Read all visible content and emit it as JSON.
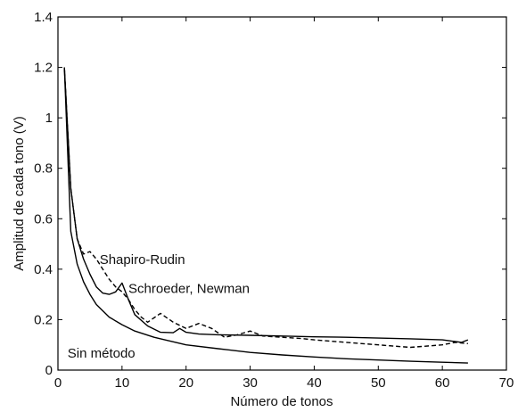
{
  "chart_data": {
    "type": "line",
    "title": "",
    "xlabel": "Número de tonos",
    "ylabel": "Amplitud de cada tono (V)",
    "xlim": [
      0,
      70
    ],
    "ylim": [
      0,
      1.4
    ],
    "xticks": [
      0,
      10,
      20,
      30,
      40,
      50,
      60,
      70
    ],
    "yticks": [
      0,
      0.2,
      0.4,
      0.6,
      0.8,
      1.0,
      1.2,
      1.4
    ],
    "xtick_labels": [
      "0",
      "10",
      "20",
      "30",
      "40",
      "50",
      "60",
      "70"
    ],
    "ytick_labels": [
      "0",
      "0.2",
      "0.4",
      "0.6",
      "0.8",
      "1",
      "1.2",
      "1.4"
    ],
    "grid": false,
    "legend": "none",
    "series": [
      {
        "style": "solid",
        "color": "#000000",
        "x": [
          1,
          2,
          3,
          4,
          5,
          6,
          8,
          10,
          12,
          15,
          20,
          25,
          30,
          35,
          40,
          45,
          50,
          55,
          60,
          64
        ],
        "y": [
          1.2,
          0.55,
          0.42,
          0.35,
          0.3,
          0.26,
          0.21,
          0.18,
          0.155,
          0.13,
          0.1,
          0.085,
          0.07,
          0.06,
          0.052,
          0.045,
          0.04,
          0.035,
          0.031,
          0.028
        ]
      },
      {
        "style": "solid",
        "color": "#000000",
        "x": [
          1,
          2,
          3,
          4,
          5,
          6,
          7,
          8,
          9,
          10,
          11,
          12,
          14,
          16,
          18,
          19,
          20,
          22,
          25,
          30,
          35,
          40,
          45,
          50,
          55,
          60,
          63,
          64
        ],
        "y": [
          1.2,
          0.72,
          0.52,
          0.44,
          0.38,
          0.33,
          0.305,
          0.3,
          0.31,
          0.345,
          0.28,
          0.22,
          0.175,
          0.15,
          0.148,
          0.165,
          0.15,
          0.143,
          0.14,
          0.138,
          0.135,
          0.132,
          0.13,
          0.127,
          0.124,
          0.12,
          0.11,
          0.12
        ]
      },
      {
        "style": "dashed",
        "color": "#000000",
        "x": [
          1,
          2,
          3,
          4,
          5,
          6,
          7,
          8,
          9,
          10,
          11,
          12,
          13,
          14,
          16,
          18,
          20,
          22,
          24,
          26,
          28,
          30,
          32,
          35,
          38,
          40,
          45,
          50,
          55,
          60,
          62,
          64
        ],
        "y": [
          1.2,
          0.72,
          0.52,
          0.46,
          0.47,
          0.44,
          0.4,
          0.36,
          0.33,
          0.31,
          0.28,
          0.24,
          0.21,
          0.19,
          0.225,
          0.19,
          0.165,
          0.185,
          0.165,
          0.13,
          0.14,
          0.155,
          0.135,
          0.13,
          0.125,
          0.12,
          0.11,
          0.1,
          0.09,
          0.1,
          0.11,
          0.105
        ]
      }
    ],
    "annotations": [
      {
        "text": "Shapiro-Rudin",
        "x": 6.5,
        "y": 0.42
      },
      {
        "text": "Schroeder, Newman",
        "x": 11,
        "y": 0.305
      },
      {
        "text": "Sin método",
        "x": 1.5,
        "y": 0.05
      }
    ]
  }
}
